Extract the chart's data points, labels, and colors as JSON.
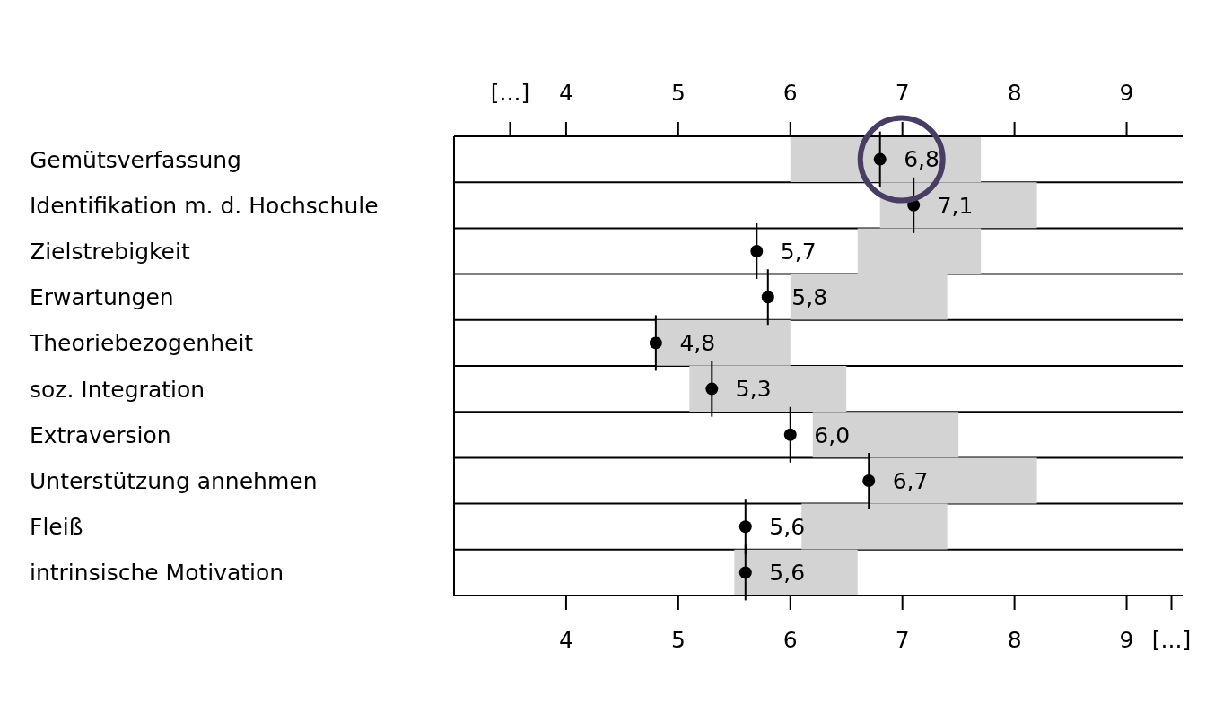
{
  "chart_data": {
    "type": "bar",
    "orientation": "horizontal",
    "categories": [
      "Gemütsverfassung",
      "Identifikation m. d. Hochschule",
      "Zielstrebigkeit",
      "Erwartungen",
      "Theoriebezogenheit",
      "soz. Integration",
      "Extraversion",
      "Unterstützung annehmen",
      "Fleiß",
      "intrinsische Motivation"
    ],
    "series": [
      {
        "color": "#d3d3d3",
        "base": [
          6.0,
          6.8,
          6.6,
          6.0,
          4.8,
          5.1,
          6.2,
          6.7,
          6.1,
          5.5
        ],
        "values": [
          1.7,
          1.4,
          1.1,
          1.4,
          1.2,
          1.4,
          1.3,
          1.5,
          1.3,
          1.1
        ]
      },
      {
        "type": "scatter",
        "color": "#000000",
        "values": [
          6.8,
          7.1,
          5.7,
          5.8,
          4.8,
          5.3,
          6.0,
          6.7,
          5.6,
          5.6
        ],
        "value_labels": [
          "6,8",
          "7,1",
          "5,7",
          "5,8",
          "4,8",
          "5,3",
          "6,0",
          "6,7",
          "5,6",
          "5,6"
        ]
      }
    ],
    "marker": "circle",
    "grid": "y",
    "xlim": [
      3,
      9.5
    ],
    "xticks": [
      4,
      5,
      6,
      7,
      8,
      9,
      {
        "value": 9.4,
        "label": "[...]"
      }
    ],
    "x2lim": [
      3,
      9.5
    ],
    "x2ticks": [
      {
        "value": 3.5,
        "label": "[...]"
      },
      4,
      5,
      6,
      7,
      8,
      9
    ]
  }
}
